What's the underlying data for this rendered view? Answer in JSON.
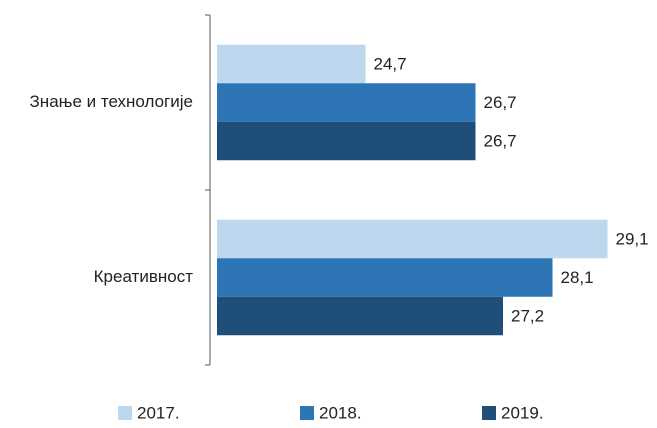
{
  "chart_data": {
    "type": "hbar",
    "categories": [
      "Знање и технологије",
      "Креативност"
    ],
    "series": [
      {
        "name": "2017.",
        "color": "#bdd7ee",
        "values": [
          24.7,
          29.1
        ],
        "value_labels": [
          "24,7",
          "29,1"
        ]
      },
      {
        "name": "2018.",
        "color": "#2e75b6",
        "values": [
          26.7,
          28.1
        ],
        "value_labels": [
          "26,7",
          "28,1"
        ]
      },
      {
        "name": "2019.",
        "color": "#1f4e79",
        "values": [
          26.7,
          27.2
        ],
        "value_labels": [
          "26,7",
          "27,2"
        ]
      }
    ],
    "xlim": [
      22,
      30
    ],
    "legend": "bottom"
  }
}
